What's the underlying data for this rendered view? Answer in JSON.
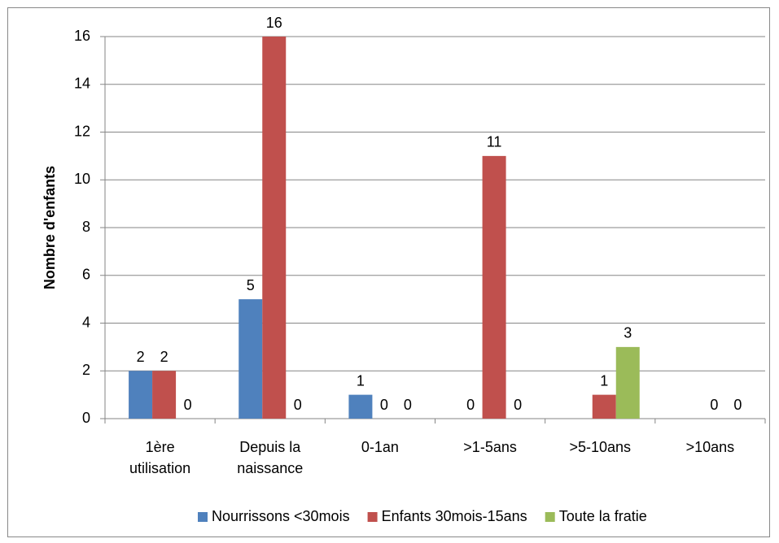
{
  "chart_data": {
    "type": "bar",
    "y_axis_label": "Nombre d'enfants",
    "categories": [
      "1ère\nutilisation",
      "Depuis la\nnaissance",
      "0-1an",
      ">1-5ans",
      ">5-10ans",
      ">10ans"
    ],
    "series": [
      {
        "name": "Nourrissons <30mois",
        "color": "#4f81bd",
        "values": [
          2,
          5,
          1,
          0,
          null,
          null
        ]
      },
      {
        "name": "Enfants 30mois-15ans",
        "color": "#c0504d",
        "values": [
          2,
          16,
          0,
          11,
          1,
          0
        ]
      },
      {
        "name": "Toute la fratie",
        "color": "#9bbb59",
        "values": [
          0,
          0,
          0,
          0,
          3,
          0
        ]
      }
    ],
    "ylim": [
      0,
      16
    ],
    "yticks": [
      0,
      2,
      4,
      6,
      8,
      10,
      12,
      14,
      16
    ],
    "grid": true,
    "legend": "bottom"
  }
}
